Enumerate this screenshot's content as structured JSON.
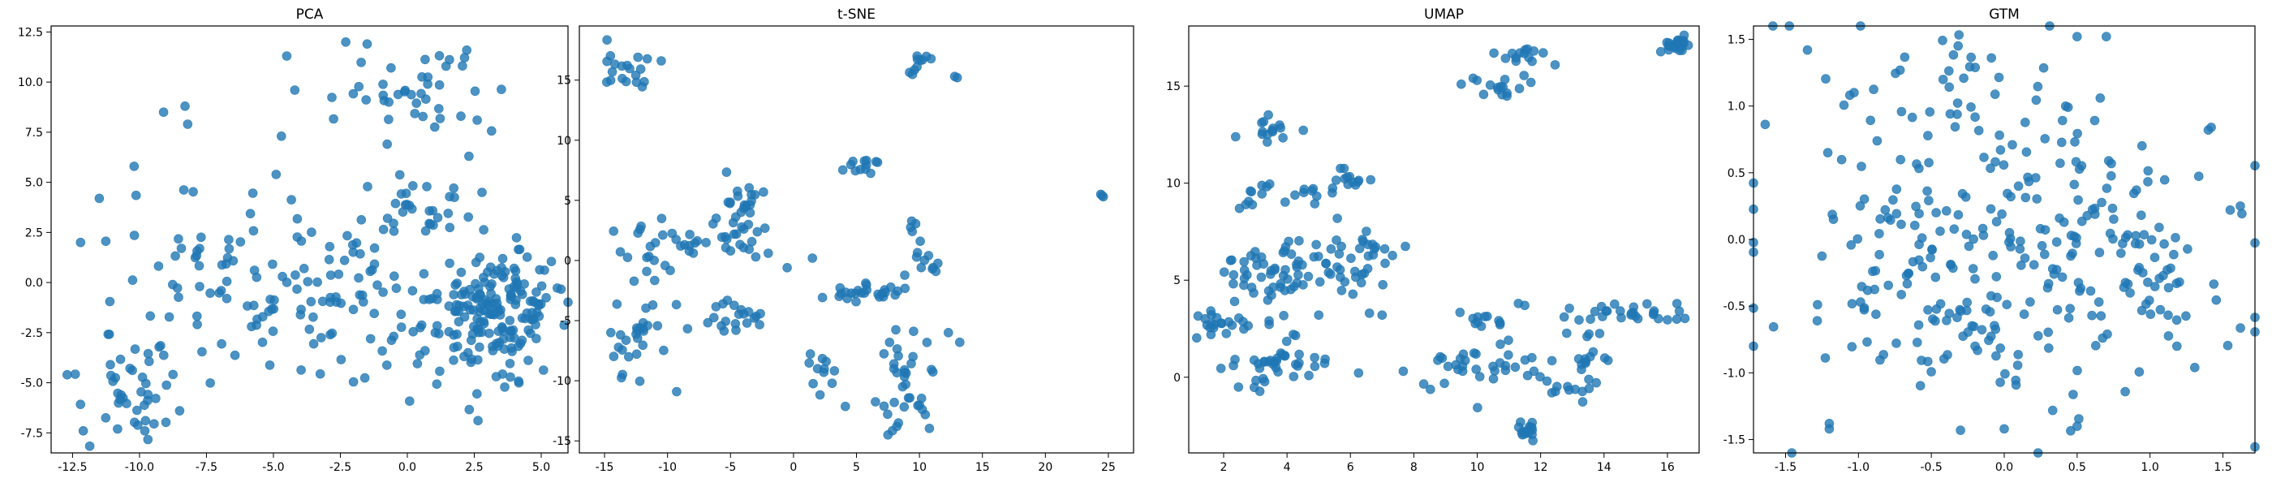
{
  "figure": {
    "background": "#ffffff",
    "point_color": "#1f77b4",
    "point_alpha": 0.8
  },
  "chart_data": [
    {
      "type": "scatter",
      "title": "PCA",
      "xlabel": "",
      "ylabel": "",
      "xlim": [
        -13.3,
        6.0
      ],
      "ylim": [
        -8.5,
        12.8
      ],
      "xticks": [
        "-12.5",
        "-10.0",
        "-7.5",
        "-5.0",
        "-2.5",
        "0.0",
        "2.5",
        "5.0"
      ],
      "xtick_values": [
        -12.5,
        -10,
        -7.5,
        -5,
        -2.5,
        0,
        2.5,
        5
      ],
      "yticks": [
        "12.5",
        "10.0",
        "7.5",
        "5.0",
        "2.5",
        "0.0",
        "-2.5",
        "-5.0",
        "-7.5"
      ],
      "ytick_values": [
        12.5,
        10,
        7.5,
        5,
        2.5,
        0,
        -2.5,
        -5,
        -7.5
      ],
      "grid": false,
      "clusters": [
        {
          "cx": 3.5,
          "cy": -1.2,
          "sx": 1.2,
          "sy": 1.4,
          "n": 150
        },
        {
          "cx": 1.5,
          "cy": -2.8,
          "sx": 1.3,
          "sy": 1.3,
          "n": 45
        },
        {
          "cx": -6.0,
          "cy": -1.0,
          "sx": 3.0,
          "sy": 2.5,
          "n": 110
        },
        {
          "cx": -10.0,
          "cy": -5.2,
          "sx": 1.5,
          "sy": 1.3,
          "n": 30
        },
        {
          "cx": 0.5,
          "cy": 9.5,
          "sx": 1.4,
          "sy": 1.0,
          "n": 40
        },
        {
          "cx": 0.2,
          "cy": 3.8,
          "sx": 1.2,
          "sy": 1.0,
          "n": 30
        },
        {
          "cx": -1.5,
          "cy": 0.5,
          "sx": 1.2,
          "sy": 1.5,
          "n": 25
        }
      ],
      "points": [
        [
          -2.3,
          12.0
        ],
        [
          -1.5,
          11.9
        ],
        [
          -4.5,
          11.3
        ],
        [
          -8.3,
          8.8
        ],
        [
          -9.1,
          8.5
        ],
        [
          -8.2,
          7.9
        ],
        [
          -4.7,
          7.3
        ],
        [
          -10.2,
          5.8
        ],
        [
          -11.5,
          4.2
        ],
        [
          -12.2,
          2.0
        ],
        [
          2.0,
          8.3
        ],
        [
          2.3,
          6.3
        ],
        [
          -12.7,
          -4.6
        ],
        [
          -12.1,
          -7.4
        ],
        [
          -9.8,
          -7.4
        ],
        [
          -8.5,
          -6.4
        ],
        [
          -4.2,
          9.6
        ]
      ]
    },
    {
      "type": "scatter",
      "title": "t-SNE",
      "xlabel": "",
      "ylabel": "",
      "xlim": [
        -17.0,
        27.0
      ],
      "ylim": [
        -16.0,
        19.5
      ],
      "xticks": [
        "-15",
        "-10",
        "-5",
        "0",
        "5",
        "10",
        "15",
        "20",
        "25"
      ],
      "xtick_values": [
        -15,
        -10,
        -5,
        0,
        5,
        10,
        15,
        20,
        25
      ],
      "yticks": [
        "15",
        "10",
        "5",
        "0",
        "-5",
        "-10",
        "-15"
      ],
      "ytick_values": [
        15,
        10,
        5,
        0,
        -5,
        -10,
        -15
      ],
      "grid": false,
      "clusters": [
        {
          "cx": -13.0,
          "cy": 16.0,
          "sx": 1.5,
          "sy": 1.2,
          "n": 20
        },
        {
          "cx": 9.8,
          "cy": 16.5,
          "sx": 0.6,
          "sy": 0.8,
          "n": 10
        },
        {
          "cx": -4.0,
          "cy": 3.5,
          "sx": 1.0,
          "sy": 1.8,
          "n": 35
        },
        {
          "cx": -12.0,
          "cy": -7.0,
          "sx": 1.5,
          "sy": 2.0,
          "n": 30
        },
        {
          "cx": -4.5,
          "cy": -4.8,
          "sx": 1.2,
          "sy": 1.0,
          "n": 20
        },
        {
          "cx": -11.5,
          "cy": 1.0,
          "sx": 1.2,
          "sy": 1.2,
          "n": 15
        },
        {
          "cx": 6.0,
          "cy": -2.7,
          "sx": 1.5,
          "sy": 0.4,
          "n": 25
        },
        {
          "cx": 9.5,
          "cy": -10.0,
          "sx": 1.3,
          "sy": 2.5,
          "n": 35
        },
        {
          "cx": 10.0,
          "cy": 0.5,
          "sx": 0.6,
          "sy": 1.5,
          "n": 15
        },
        {
          "cx": 5.5,
          "cy": 8.0,
          "sx": 0.7,
          "sy": 0.4,
          "n": 12
        },
        {
          "cx": 2.5,
          "cy": -9.0,
          "sx": 1.0,
          "sy": 1.5,
          "n": 12
        },
        {
          "cx": -8.0,
          "cy": 1.5,
          "sx": 1.5,
          "sy": 1.0,
          "n": 15
        }
      ],
      "points": [
        [
          24.5,
          5.4
        ],
        [
          24.4,
          5.5
        ],
        [
          24.6,
          5.3
        ],
        [
          13.0,
          15.2
        ],
        [
          12.8,
          15.3
        ],
        [
          13.2,
          -6.8
        ],
        [
          12.3,
          -6.0
        ],
        [
          7.5,
          -14.5
        ],
        [
          8.2,
          -13.8
        ],
        [
          -0.5,
          -0.6
        ],
        [
          -2.0,
          0.6
        ],
        [
          1.5,
          0.2
        ],
        [
          -14.5,
          -6.0
        ],
        [
          -5.0,
          0.8
        ]
      ]
    },
    {
      "type": "scatter",
      "title": "UMAP",
      "xlabel": "",
      "ylabel": "",
      "xlim": [
        0.9,
        17.0
      ],
      "ylim": [
        -3.9,
        18.1
      ],
      "xticks": [
        "2",
        "4",
        "6",
        "8",
        "10",
        "12",
        "14",
        "16"
      ],
      "xtick_values": [
        2,
        4,
        6,
        8,
        10,
        12,
        14,
        16
      ],
      "yticks": [
        "15",
        "10",
        "5",
        "0"
      ],
      "ytick_values": [
        15,
        10,
        5,
        0
      ],
      "grid": false,
      "clusters": [
        {
          "cx": 16.3,
          "cy": 17.1,
          "sx": 0.2,
          "sy": 0.2,
          "n": 25
        },
        {
          "cx": 11.3,
          "cy": 16.4,
          "sx": 0.4,
          "sy": 0.3,
          "n": 15
        },
        {
          "cx": 10.4,
          "cy": 15.0,
          "sx": 0.5,
          "sy": 0.3,
          "n": 15
        },
        {
          "cx": 3.3,
          "cy": 12.7,
          "sx": 0.5,
          "sy": 0.3,
          "n": 15
        },
        {
          "cx": 3.7,
          "cy": 5.4,
          "sx": 0.9,
          "sy": 0.8,
          "n": 60
        },
        {
          "cx": 2.2,
          "cy": 2.7,
          "sx": 0.6,
          "sy": 0.4,
          "n": 25
        },
        {
          "cx": 3.6,
          "cy": 0.5,
          "sx": 0.9,
          "sy": 0.9,
          "n": 40
        },
        {
          "cx": 6.3,
          "cy": 6.5,
          "sx": 0.7,
          "sy": 0.8,
          "n": 30
        },
        {
          "cx": 6.0,
          "cy": 10.3,
          "sx": 0.3,
          "sy": 0.4,
          "n": 12
        },
        {
          "cx": 4.5,
          "cy": 9.2,
          "sx": 0.6,
          "sy": 0.4,
          "n": 10
        },
        {
          "cx": 10.0,
          "cy": 0.5,
          "sx": 1.0,
          "sy": 0.9,
          "n": 35
        },
        {
          "cx": 11.6,
          "cy": -2.8,
          "sx": 0.2,
          "sy": 0.4,
          "n": 15
        },
        {
          "cx": 15.0,
          "cy": 3.2,
          "sx": 1.0,
          "sy": 0.3,
          "n": 25
        },
        {
          "cx": 13.4,
          "cy": 1.5,
          "sx": 0.5,
          "sy": 1.2,
          "n": 20
        },
        {
          "cx": 12.8,
          "cy": -0.5,
          "sx": 0.5,
          "sy": 0.4,
          "n": 10
        },
        {
          "cx": 10.1,
          "cy": 3.0,
          "sx": 0.5,
          "sy": 0.5,
          "n": 10
        },
        {
          "cx": 3.0,
          "cy": 9.7,
          "sx": 0.4,
          "sy": 0.4,
          "n": 8
        }
      ],
      "points": [
        [
          11.3,
          3.8
        ],
        [
          11.5,
          3.7
        ],
        [
          2.5,
          8.7
        ],
        [
          2.7,
          8.9
        ],
        [
          6.6,
          3.3
        ],
        [
          7.0,
          3.2
        ],
        [
          5.0,
          3.2
        ],
        [
          12.2,
          -0.2
        ]
      ]
    },
    {
      "type": "scatter",
      "title": "GTM",
      "xlabel": "",
      "ylabel": "",
      "xlim": [
        -1.72,
        1.72
      ],
      "ylim": [
        -1.6,
        1.6
      ],
      "xticks": [
        "-1.5",
        "-1.0",
        "-0.5",
        "0.0",
        "0.5",
        "1.0",
        "1.5"
      ],
      "xtick_values": [
        -1.5,
        -1.0,
        -0.5,
        0.0,
        0.5,
        1.0,
        1.5
      ],
      "yticks": [
        "1.5",
        "1.0",
        "0.5",
        "0.0",
        "-0.5",
        "-1.0",
        "-1.5"
      ],
      "ytick_values": [
        1.5,
        1.0,
        0.5,
        0.0,
        -0.5,
        -1.0,
        -1.5
      ],
      "grid": false,
      "clusters": [
        {
          "cx": 0.0,
          "cy": 0.0,
          "sx": 0.8,
          "sy": 0.65,
          "n": 260
        },
        {
          "cx": -0.4,
          "cy": 1.25,
          "sx": 0.2,
          "sy": 0.15,
          "n": 20
        },
        {
          "cx": 0.9,
          "cy": -0.2,
          "sx": 0.2,
          "sy": 0.3,
          "n": 30
        },
        {
          "cx": -0.3,
          "cy": -0.6,
          "sx": 0.4,
          "sy": 0.3,
          "n": 30
        }
      ],
      "points": [
        [
          -1.35,
          1.42
        ],
        [
          0.5,
          1.52
        ],
        [
          0.7,
          1.52
        ],
        [
          1.4,
          0.82
        ],
        [
          1.42,
          0.84
        ],
        [
          1.55,
          0.22
        ],
        [
          1.62,
          0.25
        ],
        [
          0.0,
          -1.42
        ],
        [
          -0.3,
          -1.43
        ],
        [
          0.5,
          -1.4
        ],
        [
          -1.2,
          -1.38
        ],
        [
          -1.2,
          -1.42
        ]
      ]
    }
  ]
}
